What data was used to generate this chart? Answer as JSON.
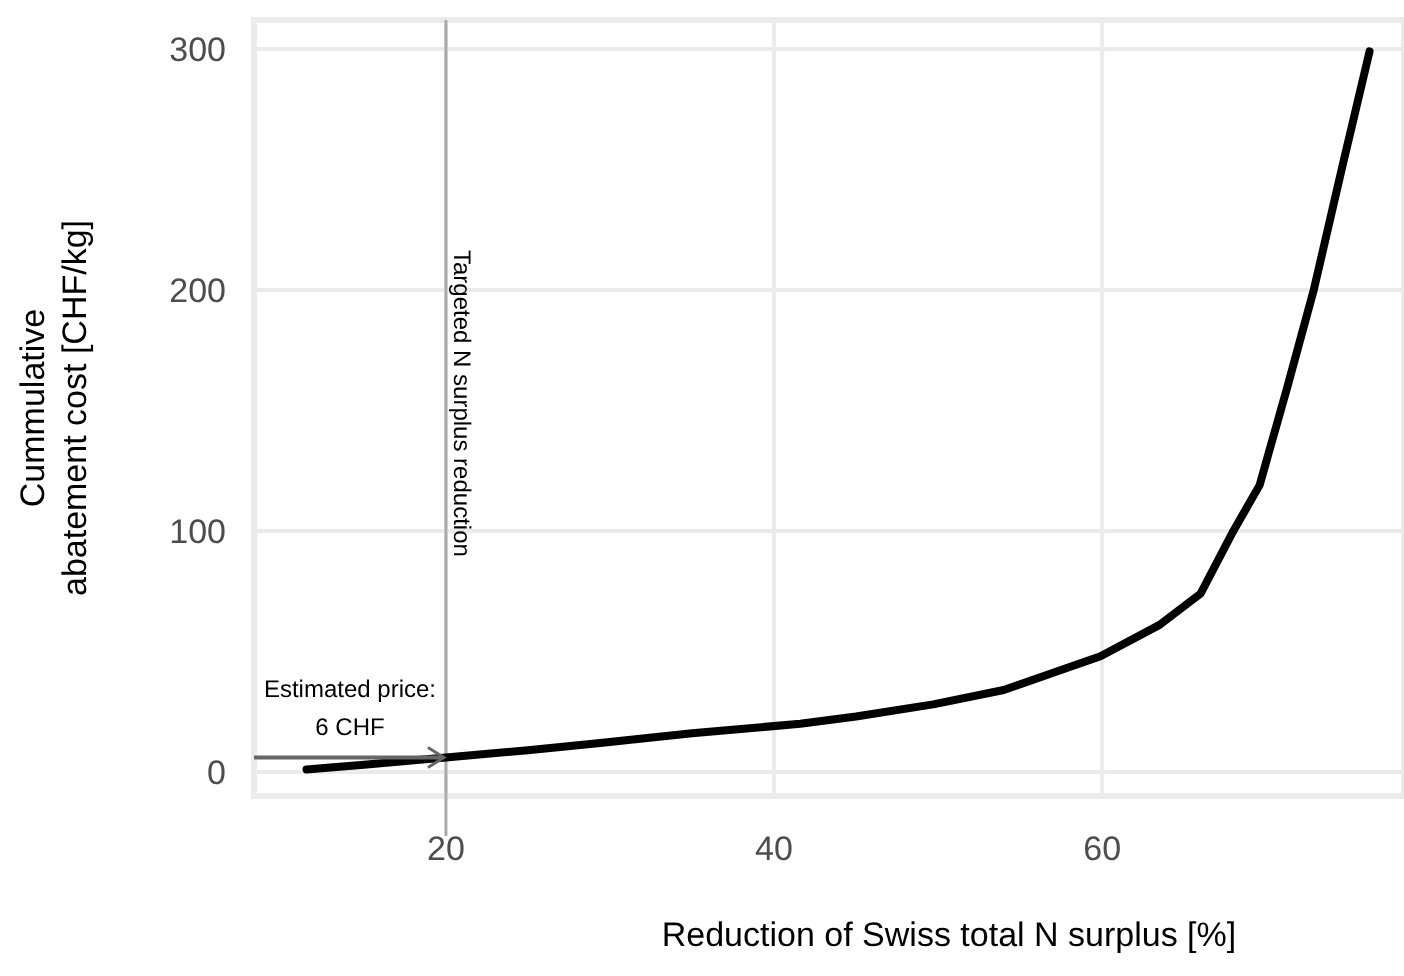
{
  "chart_data": {
    "type": "line",
    "xlabel": "Reduction of Swiss total N surplus [%]",
    "ylabel": "Cummulative\nabatement cost [CHF/kg]",
    "series": [
      {
        "color": "#000000",
        "x": [
          11.5,
          15,
          20,
          25,
          29.4,
          35,
          41.6,
          45,
          49.7,
          54,
          57.8,
          59.9,
          63.5,
          66,
          68,
          69.6,
          71.3,
          72.9,
          74.6,
          76.3
        ],
        "values": [
          1,
          3,
          6,
          9,
          12,
          16,
          20,
          23,
          28,
          34,
          43,
          48,
          61,
          74,
          100,
          119,
          160,
          200,
          250,
          299
        ]
      }
    ],
    "xlim": [
      8.3,
      78.4
    ],
    "ylim": [
      -10,
      312
    ],
    "xticks": [
      20,
      40,
      60
    ],
    "yticks": [
      0,
      100,
      200,
      300
    ],
    "grid": true,
    "line_style": "solid",
    "marker": "none",
    "ref_lines": [
      {
        "axis": "x",
        "value": 20,
        "label": "Targeted N surplus reduction",
        "color": "#aaaaaa"
      }
    ],
    "annotations": [
      {
        "text": "Estimated price:\n6 CHF",
        "x": 20,
        "y": 6
      }
    ]
  }
}
